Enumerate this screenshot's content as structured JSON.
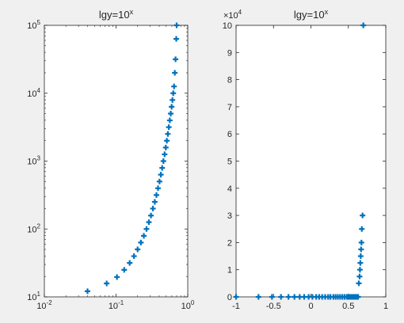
{
  "figure": {
    "background": "#f0f0f0"
  },
  "chart_data": [
    {
      "type": "scatter",
      "title": "lgy=10",
      "title_superscript": "x",
      "xscale": "log",
      "yscale": "log",
      "xlim": [
        0.01,
        1
      ],
      "ylim": [
        10,
        100000
      ],
      "xticks": [
        {
          "value": 0.01,
          "base": "10",
          "exp": "-2"
        },
        {
          "value": 0.1,
          "base": "10",
          "exp": "-1"
        },
        {
          "value": 1,
          "base": "10",
          "exp": "0"
        }
      ],
      "yticks": [
        {
          "value": 10,
          "base": "10",
          "exp": "1"
        },
        {
          "value": 100,
          "base": "10",
          "exp": "2"
        },
        {
          "value": 1000,
          "base": "10",
          "exp": "3"
        },
        {
          "value": 10000,
          "base": "10",
          "exp": "4"
        },
        {
          "value": 100000,
          "base": "10",
          "exp": "5"
        }
      ],
      "marker": "+",
      "color": "#0072bd",
      "grid": false,
      "series": [
        {
          "x": [
            0.04,
            0.074,
            0.103,
            0.13,
            0.155,
            0.178,
            0.2,
            0.222,
            0.244,
            0.266,
            0.287,
            0.307,
            0.327,
            0.347,
            0.366,
            0.385,
            0.404,
            0.422,
            0.44,
            0.458,
            0.476,
            0.494,
            0.511,
            0.528,
            0.545,
            0.562,
            0.579,
            0.596,
            0.612,
            0.628,
            0.644,
            0.66,
            0.676,
            0.692,
            0.7
          ],
          "y": [
            12.1,
            15.8,
            19.6,
            25.0,
            31.6,
            39.8,
            50.1,
            63.1,
            79.4,
            100,
            126,
            158,
            200,
            251,
            316,
            398,
            501,
            631,
            794,
            1000,
            1259,
            1585,
            1995,
            2512,
            3162,
            3981,
            5012,
            6310,
            7943,
            10000,
            12589,
            19953,
            31623,
            63096,
            100000
          ]
        }
      ]
    },
    {
      "type": "scatter",
      "title": "lgy=10",
      "title_superscript": "x",
      "xscale": "linear",
      "yscale": "linear",
      "xlim": [
        -1,
        1
      ],
      "ylim": [
        0,
        100000
      ],
      "xticks": [
        -1,
        -0.5,
        0,
        0.5,
        1
      ],
      "xtick_labels": [
        "-1",
        "-0.5",
        "0",
        "0.5",
        "1"
      ],
      "yticks": [
        0,
        10000,
        20000,
        30000,
        40000,
        50000,
        60000,
        70000,
        80000,
        90000,
        100000
      ],
      "ytick_labels": [
        "0",
        "1",
        "2",
        "3",
        "4",
        "5",
        "6",
        "7",
        "8",
        "9",
        "10"
      ],
      "y_multiplier": {
        "text": "×10",
        "exp": "4"
      },
      "marker": "+",
      "color": "#0072bd",
      "grid": false,
      "series": [
        {
          "x": [
            -1,
            -0.7,
            -0.52,
            -0.4,
            -0.3,
            -0.22,
            -0.15,
            -0.09,
            -0.03,
            0.02,
            0.07,
            0.11,
            0.15,
            0.19,
            0.23,
            0.26,
            0.3,
            0.33,
            0.36,
            0.39,
            0.42,
            0.45,
            0.48,
            0.5,
            0.52,
            0.54,
            0.56,
            0.58,
            0.6,
            0.61,
            0.62,
            0.63,
            0.64,
            0.65,
            0.655,
            0.66,
            0.665,
            0.67,
            0.675,
            0.68,
            0.69,
            0.7
          ],
          "y": [
            0.1,
            0.2,
            0.3,
            0.4,
            0.5,
            0.6,
            0.7,
            0.8,
            0.9,
            1.0,
            1.2,
            1.3,
            1.4,
            1.5,
            1.7,
            1.8,
            2.0,
            2.1,
            2.3,
            2.5,
            2.6,
            2.8,
            3.0,
            3.2,
            3.3,
            3.5,
            3.6,
            3.8,
            4.0,
            4.1,
            4.2,
            4.3,
            5000,
            7500,
            10000,
            12500,
            15000,
            17500,
            20000,
            25000,
            30000,
            100000
          ]
        }
      ]
    }
  ]
}
